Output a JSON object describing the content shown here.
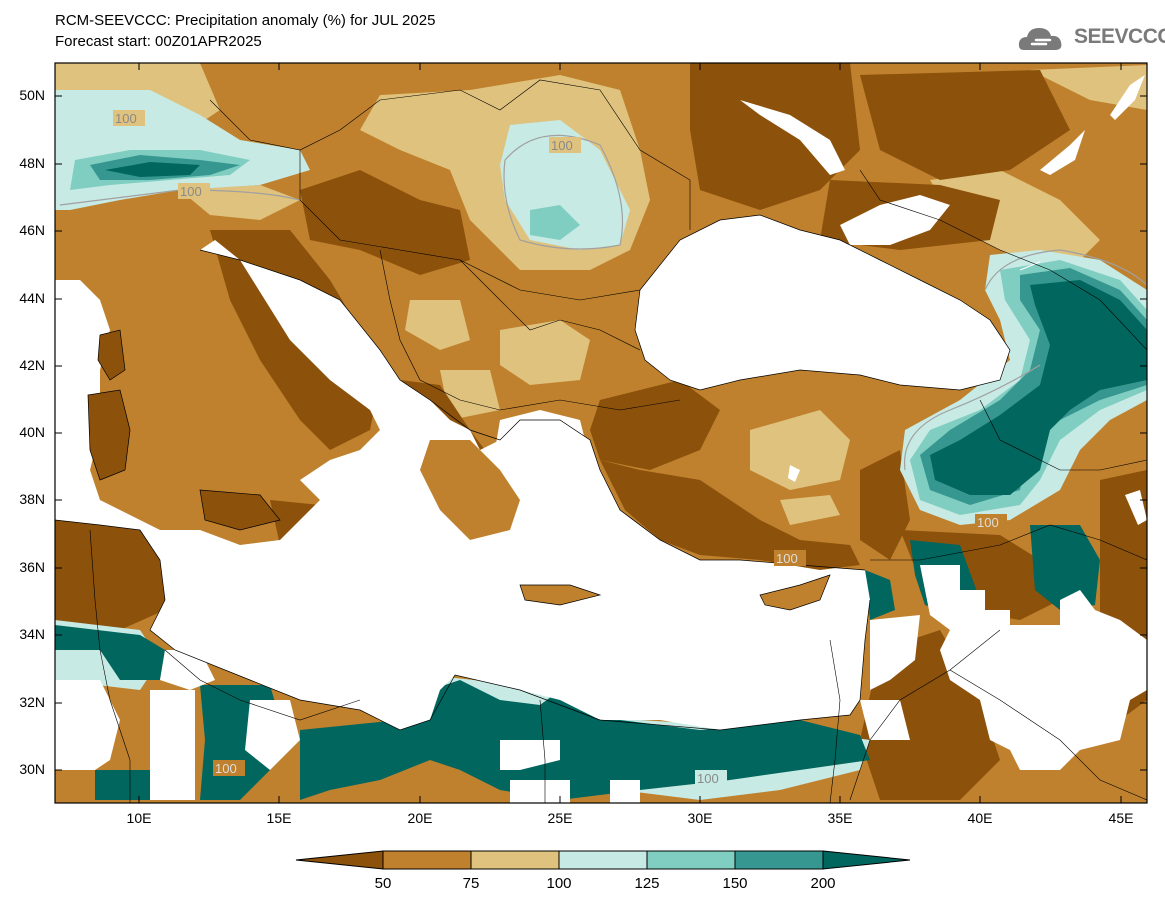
{
  "header": {
    "title": "RCM-SEEVCCC: Precipitation anomaly (%) for JUL 2025",
    "subtitle": "Forecast start: 00Z01APR2025"
  },
  "logo": {
    "text": "SEEVCCC",
    "icon": "cloud-icon"
  },
  "map": {
    "latitude_labels": [
      "50N",
      "48N",
      "46N",
      "44N",
      "42N",
      "40N",
      "38N",
      "36N",
      "34N",
      "32N",
      "30N"
    ],
    "longitude_labels": [
      "10E",
      "15E",
      "20E",
      "25E",
      "30E",
      "35E",
      "40E",
      "45E"
    ],
    "contour_labels": [
      "100",
      "100",
      "100",
      "100",
      "100",
      "100",
      "100"
    ]
  },
  "colorbar": {
    "tick_labels": [
      "50",
      "75",
      "100",
      "125",
      "150",
      "200"
    ],
    "colors": {
      "below_50": "#8c510a",
      "50_75": "#bf812d",
      "75_100": "#dfc27d",
      "100_125": "#c7eae5",
      "125_150": "#80cdc1",
      "150_200": "#35978f",
      "above_200": "#01665e"
    }
  }
}
